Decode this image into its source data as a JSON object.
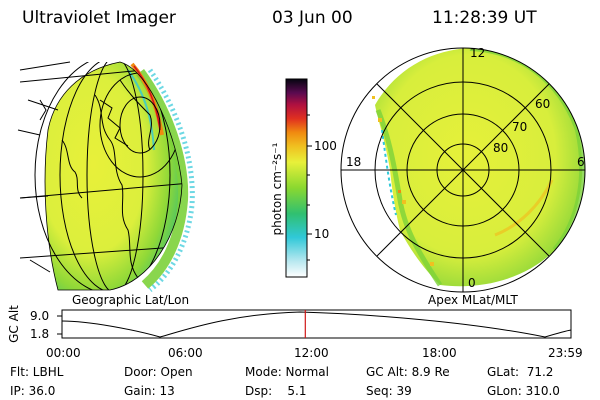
{
  "header": {
    "title": "Ultraviolet Imager",
    "date": "03 Jun 00",
    "time": "11:28:39 UT"
  },
  "colorbar": {
    "unit_label": "photon cm⁻²s⁻¹",
    "ticks": [
      "100",
      "10"
    ]
  },
  "geo_panel": {
    "label": "Geographic Lat/Lon"
  },
  "polar_panel": {
    "label": "Apex MLat/MLT",
    "mlt_labels": [
      "12",
      "18",
      "6",
      "0"
    ],
    "mlat_labels": [
      "60",
      "70",
      "80"
    ]
  },
  "orbit": {
    "y_label": "GC Alt",
    "y_ticks": [
      "9.0",
      "1.8"
    ],
    "x_ticks": [
      "00:00",
      "06:00",
      "12:00",
      "18:00",
      "23:59"
    ],
    "current_time_fraction": 0.478
  },
  "info": {
    "flt": "Flt: LBHL",
    "ip": "IP: 36.0",
    "door": "Door: Open",
    "gain": "Gain: 13",
    "mode": "Mode: Normal",
    "dsp": "Dsp:    5.1",
    "gc_alt": "GC Alt: 8.9 Re",
    "seq": "Seq: 39",
    "glat": "GLat:  71.2",
    "glon": "GLon: 310.0"
  },
  "colors": {
    "yellow": "#e8f03a",
    "green": "#7cd23a",
    "cyan": "#2fc8d8",
    "orange": "#f08a10",
    "red": "#d01020",
    "time_marker": "#d01818"
  }
}
